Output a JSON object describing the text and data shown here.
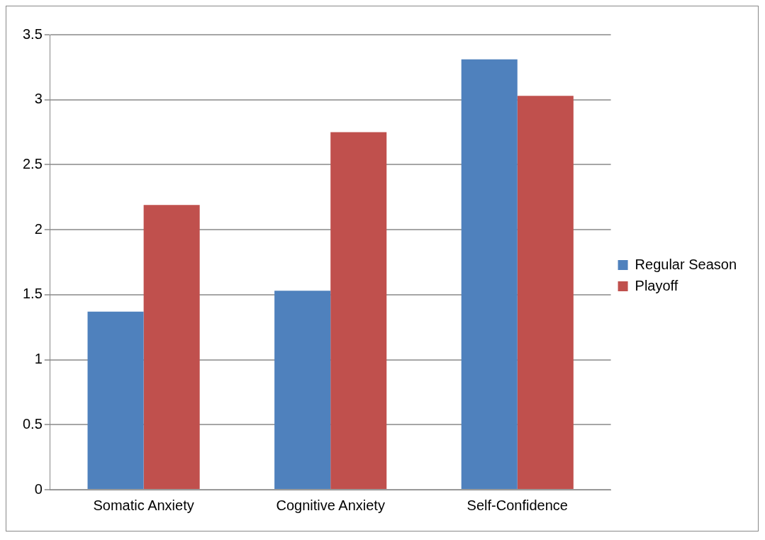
{
  "chart_data": {
    "type": "bar",
    "categories": [
      "Somatic Anxiety",
      "Cognitive Anxiety",
      "Self-Confidence"
    ],
    "series": [
      {
        "name": "Regular Season",
        "color": "#4f81bd",
        "values": [
          1.37,
          1.53,
          3.31
        ]
      },
      {
        "name": "Playoff",
        "color": "#c0504d",
        "values": [
          2.19,
          2.75,
          3.03
        ]
      }
    ],
    "ylim": [
      0,
      3.5
    ],
    "yticks": [
      0,
      0.5,
      1,
      1.5,
      2,
      2.5,
      3,
      3.5
    ],
    "grid": "y",
    "legend": "right"
  }
}
